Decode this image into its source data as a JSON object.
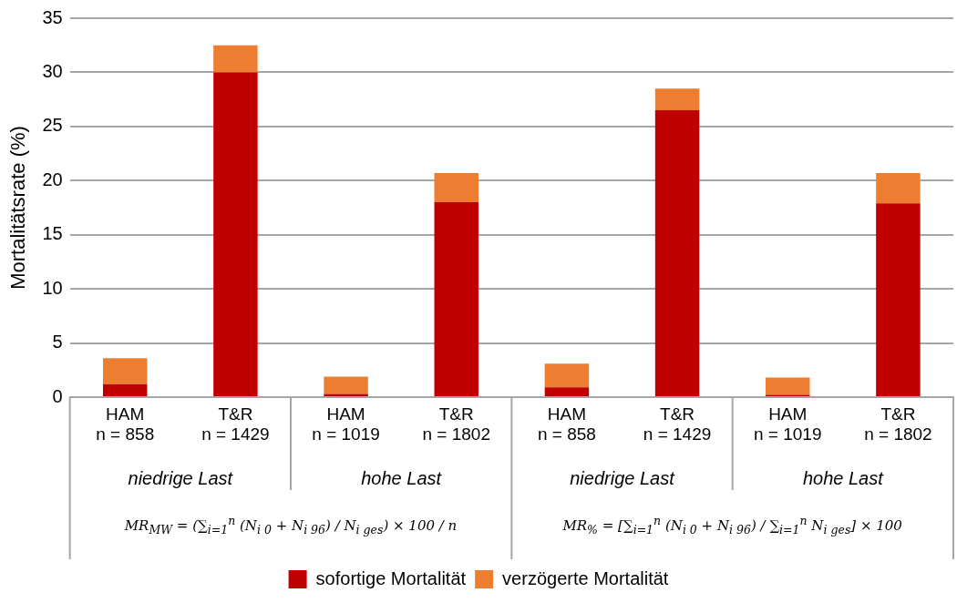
{
  "chart_data": {
    "type": "bar",
    "stacked": true,
    "ylabel": "Mortalitätsrate (%)",
    "categories": [
      "HAM\nn = 858",
      "T&R\nn = 1429",
      "HAM\nn = 1019",
      "T&R\nn = 1802",
      "HAM\nn = 858",
      "T&R\nn = 1429",
      "HAM\nn = 1019",
      "T&R\nn = 1802"
    ],
    "series": [
      {
        "name": "sofortige Mortalität",
        "color": "#c00000",
        "values": [
          1.2,
          30.0,
          0.3,
          18.0,
          0.9,
          26.5,
          0.2,
          17.9
        ]
      },
      {
        "name": "verzögerte Mortalität",
        "color": "#ed7d31",
        "values": [
          2.4,
          2.5,
          1.6,
          2.7,
          2.2,
          2.0,
          1.6,
          2.8
        ]
      }
    ],
    "ylim": [
      0,
      35
    ],
    "yticks": [
      0,
      5,
      10,
      15,
      20,
      25,
      30,
      35
    ],
    "grid": "y",
    "legend": "bottom",
    "annotations": [
      "niedrige Last",
      "hohe Last",
      "niedrige Last",
      "hohe Last",
      "MR$_{MW}$ = (∑$_{i=1}$$^{n}$ (N$_{i 0}$ + N$_{i 96}$) / N$_{i ges}$) × 100 / n",
      "MR$_{%}$ = [∑$_{i=1}$$^{n}$ (N$_{i 0}$ + N$_{i 96}$) / ∑$_{i=1}$$^{n}$ N$_{i ges}$] × 100"
    ]
  }
}
